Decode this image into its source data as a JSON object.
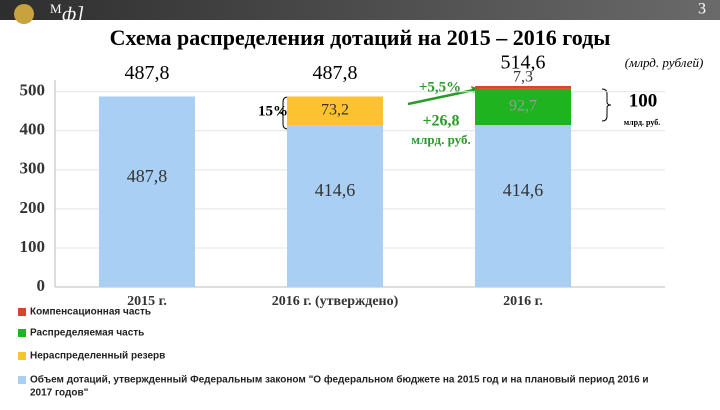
{
  "header": {
    "logo_letter": "М",
    "logo_text": "ф]",
    "page_number": "3"
  },
  "chart_data": {
    "type": "stacked-bar",
    "title": "Схема распределения дотаций на 2015 – 2016 годы",
    "unit": "(млрд. рублей)",
    "categories": [
      "2015 г.",
      "2016 г. (утверждено)",
      "2016 г."
    ],
    "series": [
      {
        "name": "Объем дотаций, утвержденный Федеральным законом \"О федеральном бюджете на 2015 год и на плановый период 2016 и 2017 годов\"",
        "color": "#a9cff4",
        "values": [
          487.8,
          414.6,
          414.6
        ],
        "value_labels": [
          "487,8",
          "414,6",
          "414,6"
        ]
      },
      {
        "name": "Нераспределенный резерв",
        "color": "#fdc230",
        "values": [
          null,
          73.2,
          null
        ],
        "value_labels": [
          null,
          "73,2",
          null
        ]
      },
      {
        "name": "Распределяемая часть",
        "color": "#1fb41f",
        "values": [
          null,
          null,
          92.7
        ],
        "value_labels": [
          null,
          null,
          "92,7"
        ]
      },
      {
        "name": "Компенсационная часть",
        "color": "#e0402c",
        "values": [
          null,
          null,
          7.3
        ],
        "value_labels": [
          null,
          null,
          "7,3"
        ]
      }
    ],
    "totals": [
      487.8,
      487.8,
      514.6
    ],
    "total_labels": [
      "487,8",
      "487,8",
      "514,6"
    ],
    "annotations": [
      "15%",
      "+5,5%",
      "+26,8",
      "млрд. руб.",
      "100",
      "млрд. руб."
    ],
    "ylim": [
      0,
      530
    ],
    "yticks": [
      0,
      100,
      200,
      300,
      400,
      500
    ]
  }
}
